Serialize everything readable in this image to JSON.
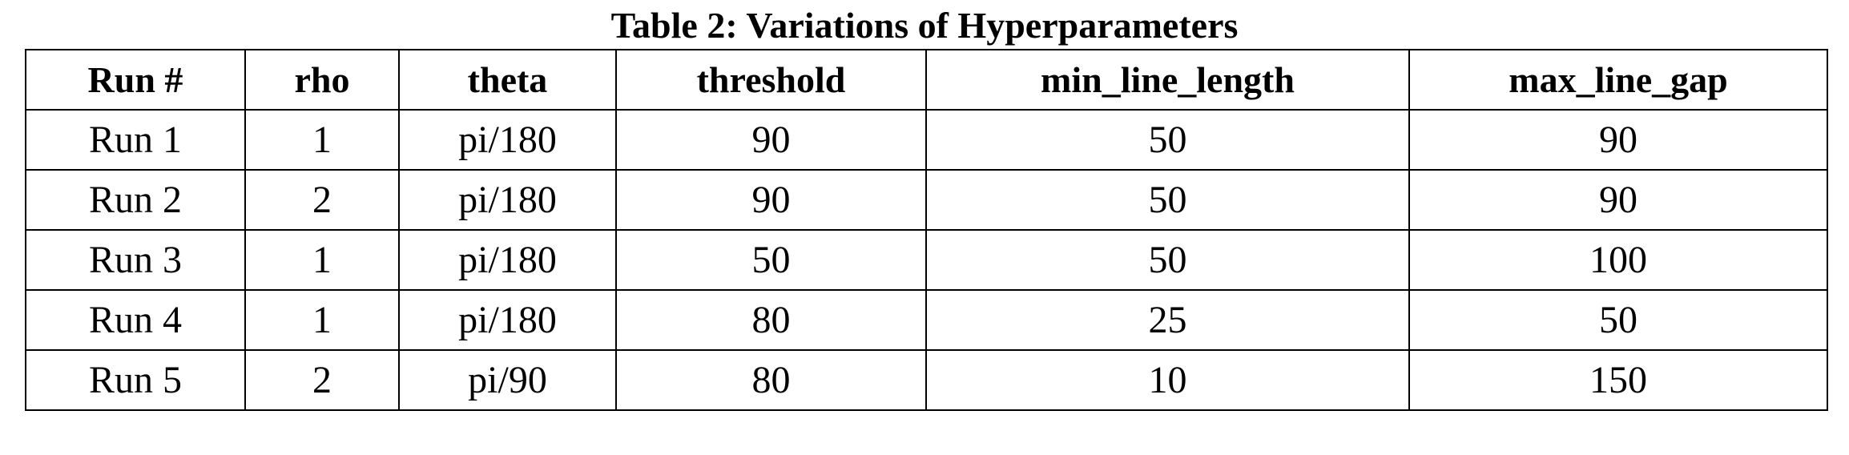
{
  "caption": "Table 2: Variations of Hyperparameters",
  "table": {
    "headers": [
      "Run #",
      "rho",
      "theta",
      "threshold",
      "min_line_length",
      "max_line_gap"
    ],
    "rows": [
      [
        "Run 1",
        "1",
        "pi/180",
        "90",
        "50",
        "90"
      ],
      [
        "Run 2",
        "2",
        "pi/180",
        "90",
        "50",
        "90"
      ],
      [
        "Run 3",
        "1",
        "pi/180",
        "50",
        "50",
        "100"
      ],
      [
        "Run 4",
        "1",
        "pi/180",
        "80",
        "25",
        "50"
      ],
      [
        "Run 5",
        "2",
        "pi/90",
        "80",
        "10",
        "150"
      ]
    ]
  }
}
